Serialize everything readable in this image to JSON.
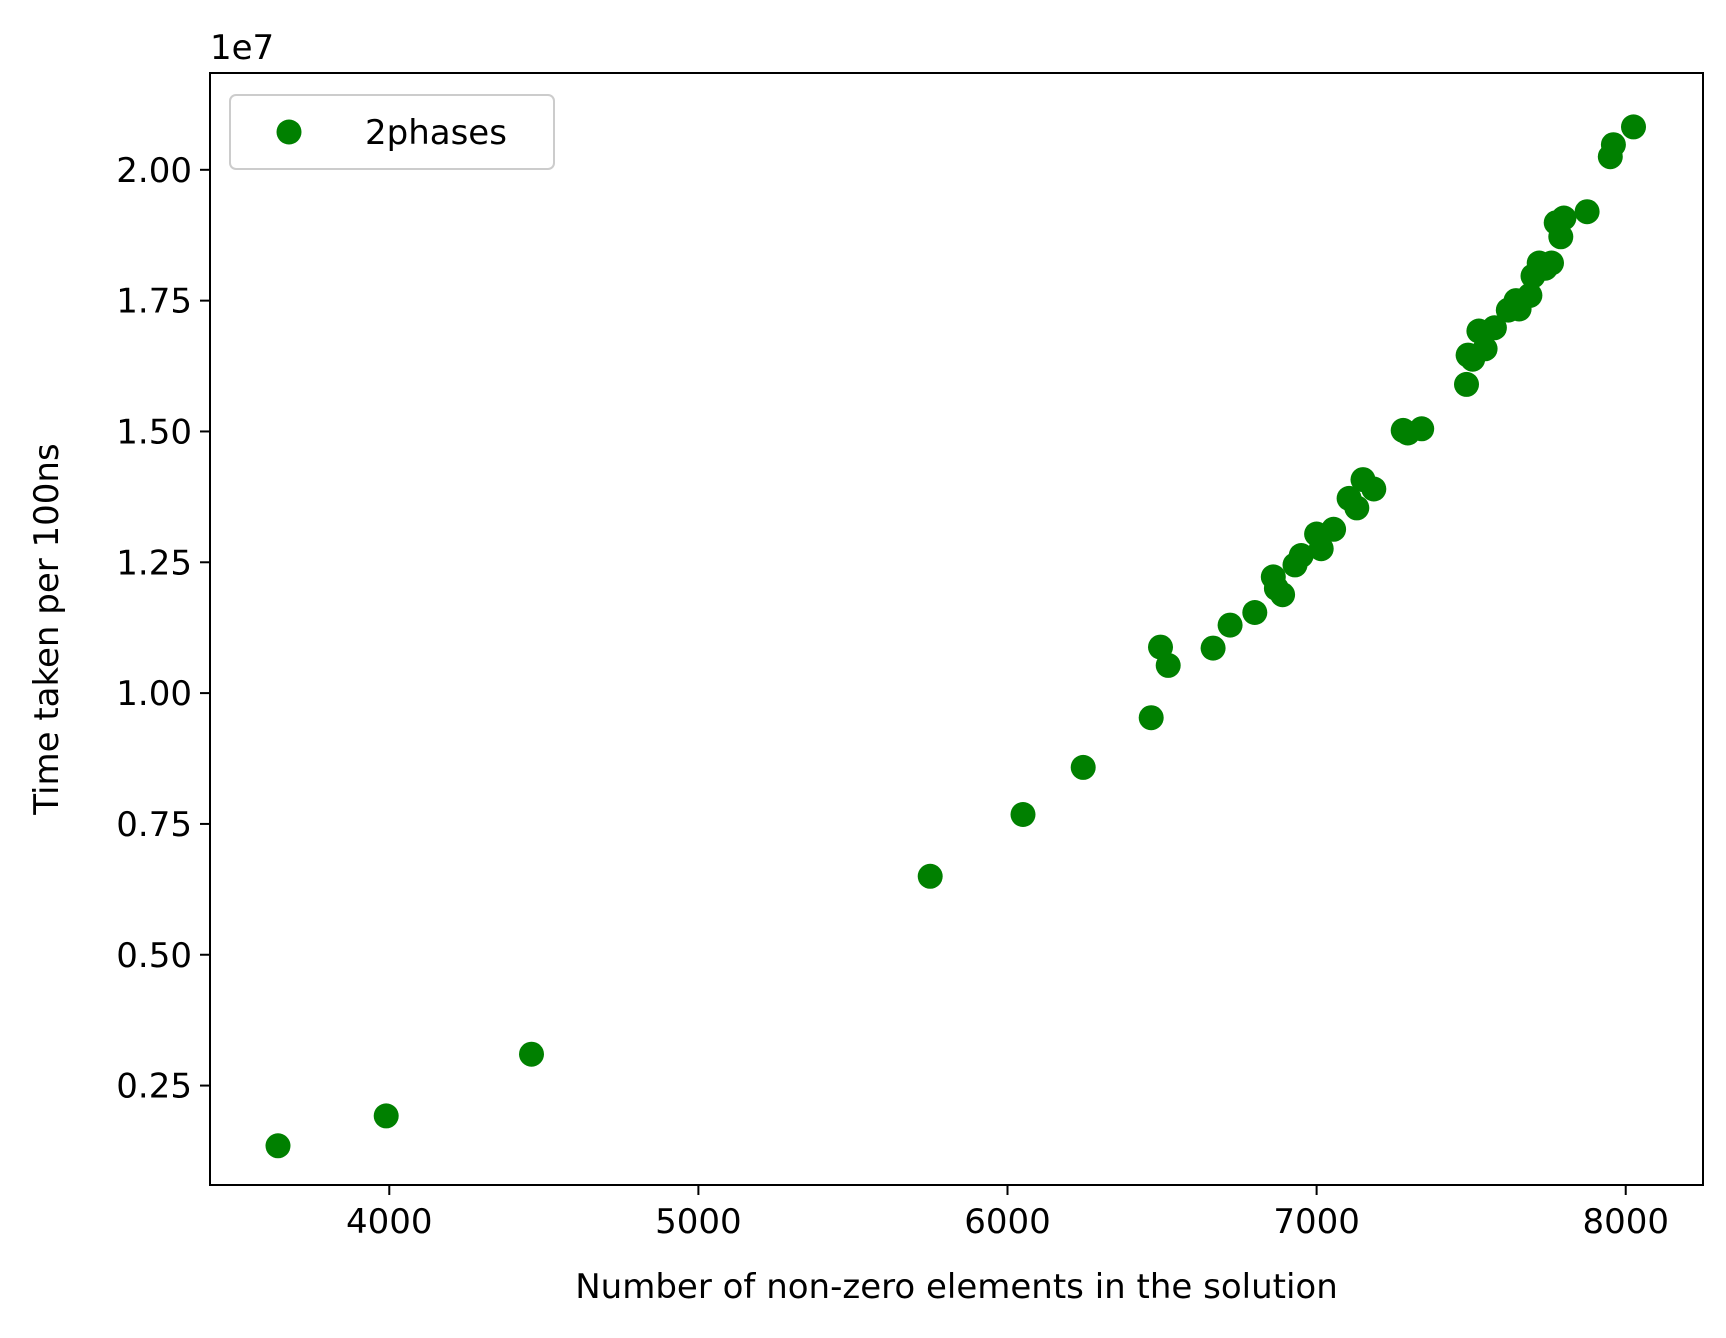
{
  "chart_data": {
    "type": "scatter",
    "title": "",
    "xlabel": "Number of non-zero elements in the solution",
    "ylabel": "Time taken per 100ns",
    "y_offset_text": "1e7",
    "xlim": [
      3420,
      8250
    ],
    "ylim": [
      600000,
      21850000
    ],
    "x_ticks": [
      4000,
      5000,
      6000,
      7000,
      8000
    ],
    "x_tick_labels": [
      "4000",
      "5000",
      "6000",
      "7000",
      "8000"
    ],
    "y_ticks": [
      2500000,
      5000000,
      7500000,
      10000000,
      12500000,
      15000000,
      17500000,
      20000000
    ],
    "y_tick_labels": [
      "0.25",
      "0.50",
      "0.75",
      "1.00",
      "1.25",
      "1.50",
      "1.75",
      "2.00"
    ],
    "grid": false,
    "legend_position": "top-left",
    "series": [
      {
        "name": "2phases",
        "color": "#008000",
        "marker": "circle",
        "points": [
          [
            3640,
            1350000
          ],
          [
            3990,
            1920000
          ],
          [
            4460,
            3100000
          ],
          [
            5750,
            6500000
          ],
          [
            6050,
            7680000
          ],
          [
            6245,
            8580000
          ],
          [
            6465,
            9530000
          ],
          [
            6495,
            10880000
          ],
          [
            6520,
            10530000
          ],
          [
            6665,
            10860000
          ],
          [
            6720,
            11300000
          ],
          [
            6800,
            11540000
          ],
          [
            6860,
            12220000
          ],
          [
            6870,
            12000000
          ],
          [
            6890,
            11880000
          ],
          [
            6930,
            12450000
          ],
          [
            6950,
            12630000
          ],
          [
            7000,
            13040000
          ],
          [
            7015,
            12760000
          ],
          [
            7055,
            13130000
          ],
          [
            7105,
            13720000
          ],
          [
            7130,
            13540000
          ],
          [
            7150,
            14080000
          ],
          [
            7185,
            13900000
          ],
          [
            7280,
            15020000
          ],
          [
            7295,
            14970000
          ],
          [
            7340,
            15050000
          ],
          [
            7485,
            15900000
          ],
          [
            7490,
            16460000
          ],
          [
            7505,
            16380000
          ],
          [
            7525,
            16920000
          ],
          [
            7545,
            16580000
          ],
          [
            7575,
            16980000
          ],
          [
            7620,
            17320000
          ],
          [
            7645,
            17500000
          ],
          [
            7655,
            17340000
          ],
          [
            7690,
            17600000
          ],
          [
            7700,
            17970000
          ],
          [
            7720,
            18220000
          ],
          [
            7740,
            18120000
          ],
          [
            7760,
            18220000
          ],
          [
            7775,
            18990000
          ],
          [
            7790,
            18720000
          ],
          [
            7800,
            19080000
          ],
          [
            7875,
            19200000
          ],
          [
            7950,
            20250000
          ],
          [
            7960,
            20480000
          ],
          [
            8025,
            20820000
          ]
        ]
      }
    ]
  }
}
